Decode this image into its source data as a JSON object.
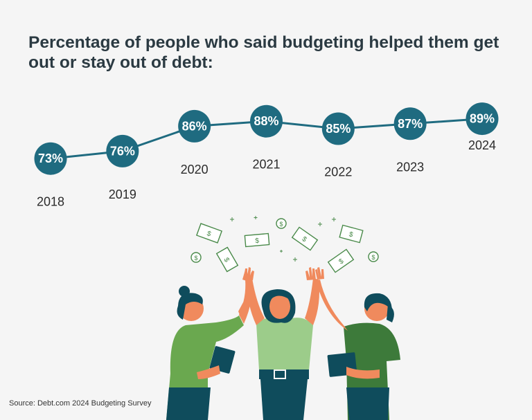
{
  "title": "Percentage of people who said budgeting helped them get out or stay out of debt:",
  "source": "Source: Debt.com 2024 Budgeting Survey",
  "colors": {
    "bubble": "#1f6b80",
    "line": "#1f6b80",
    "text_dark": "#2b3a42",
    "money_green": "#4a8a4a"
  },
  "chart_data": {
    "type": "line",
    "title": "Percentage of people who said budgeting helped them get out or stay out of debt:",
    "xlabel": "",
    "ylabel": "",
    "categories": [
      "2018",
      "2019",
      "2020",
      "2021",
      "2022",
      "2023",
      "2024"
    ],
    "values": [
      73,
      76,
      86,
      88,
      85,
      87,
      89
    ],
    "value_labels": [
      "73%",
      "76%",
      "86%",
      "88%",
      "85%",
      "87%",
      "89%"
    ],
    "grid": false,
    "legend": "none"
  },
  "illustration": {
    "subject": "three women high-fiving under falling money"
  }
}
